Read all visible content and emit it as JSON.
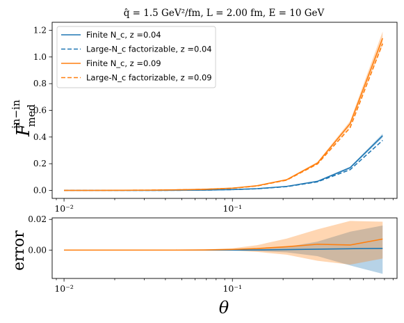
{
  "chart_data": [
    {
      "type": "line",
      "title": "q̂ = 1.5 GeV²/fm, L = 2.00 fm, E = 10 GeV",
      "xlabel": "",
      "ylabel": "F_med^(in−in)",
      "xscale": "log",
      "xlim": [
        0.0085,
        0.95
      ],
      "ylim": [
        -0.06,
        1.26
      ],
      "yticks": [
        "0.0",
        "0.2",
        "0.4",
        "0.6",
        "0.8",
        "1.0",
        "1.2"
      ],
      "xticks": [
        "10⁻²",
        "10⁻¹"
      ],
      "grid": false,
      "legend_position": "top-left",
      "x": [
        0.01,
        0.015,
        0.022,
        0.032,
        0.046,
        0.068,
        0.1,
        0.14,
        0.21,
        0.32,
        0.5,
        0.78
      ],
      "series": [
        {
          "name": "Finite N_c, z =0.04",
          "color": "#1f77b4",
          "dash": "solid",
          "values": [
            0.0,
            0.0,
            0.0,
            0.0,
            0.001,
            0.002,
            0.006,
            0.013,
            0.03,
            0.068,
            0.17,
            0.41
          ],
          "band_lower": [
            0.0,
            0.0,
            0.0,
            0.0,
            0.001,
            0.002,
            0.005,
            0.012,
            0.028,
            0.064,
            0.162,
            0.395
          ],
          "band_upper": [
            0.0,
            0.0,
            0.0,
            0.0,
            0.001,
            0.002,
            0.007,
            0.014,
            0.032,
            0.072,
            0.178,
            0.425
          ]
        },
        {
          "name": "Large-N_c factorizable, z =0.04",
          "color": "#1f77b4",
          "dash": "dashed",
          "values": [
            0.0,
            0.0,
            0.0,
            0.0,
            0.001,
            0.002,
            0.006,
            0.012,
            0.028,
            0.064,
            0.155,
            0.375
          ]
        },
        {
          "name": "Finite N_c, z =0.09",
          "color": "#ff7f0e",
          "dash": "solid",
          "values": [
            0.0,
            0.0,
            0.001,
            0.002,
            0.004,
            0.008,
            0.017,
            0.035,
            0.08,
            0.205,
            0.5,
            1.14
          ],
          "band_lower": [
            0.0,
            0.0,
            0.001,
            0.002,
            0.004,
            0.007,
            0.015,
            0.032,
            0.075,
            0.196,
            0.48,
            1.09
          ],
          "band_upper": [
            0.0,
            0.0,
            0.001,
            0.002,
            0.004,
            0.009,
            0.019,
            0.038,
            0.085,
            0.214,
            0.52,
            1.19
          ]
        },
        {
          "name": "Large-N_c factorizable, z =0.09",
          "color": "#ff7f0e",
          "dash": "dashed",
          "values": [
            0.0,
            0.0,
            0.001,
            0.002,
            0.004,
            0.008,
            0.016,
            0.033,
            0.077,
            0.198,
            0.47,
            1.1
          ]
        }
      ]
    },
    {
      "type": "line",
      "title": "",
      "xlabel": "θ",
      "ylabel": "error",
      "xscale": "log",
      "xlim": [
        0.0085,
        0.95
      ],
      "ylim": [
        -0.0185,
        0.021
      ],
      "yticks": [
        "0.00",
        "0.02"
      ],
      "xticks": [
        "10⁻²",
        "10⁻¹"
      ],
      "grid": false,
      "x": [
        0.01,
        0.015,
        0.022,
        0.032,
        0.046,
        0.068,
        0.1,
        0.14,
        0.21,
        0.32,
        0.5,
        0.78
      ],
      "series": [
        {
          "color": "#1f77b4",
          "dash": "solid",
          "values": [
            0.0,
            0.0,
            0.0,
            0.0,
            0.0,
            0.0,
            0.0,
            0.0001,
            0.0003,
            0.0006,
            0.0009,
            0.0011
          ],
          "band_lower": [
            0.0,
            0.0,
            0.0,
            0.0,
            0.0,
            0.0,
            -0.0002,
            -0.0006,
            -0.0015,
            -0.004,
            -0.01,
            -0.0155
          ],
          "band_upper": [
            0.0,
            0.0,
            0.0,
            0.0,
            0.0,
            0.0,
            0.0002,
            0.0008,
            0.002,
            0.0055,
            0.012,
            0.016
          ]
        },
        {
          "color": "#ff7f0e",
          "dash": "solid",
          "values": [
            0.0,
            0.0,
            0.0,
            0.0,
            0.0,
            0.0001,
            0.0004,
            0.001,
            0.0022,
            0.0038,
            0.0033,
            0.0072
          ],
          "band_lower": [
            0.0,
            0.0,
            0.0,
            0.0,
            0.0,
            -0.0001,
            -0.0003,
            -0.0012,
            -0.003,
            -0.007,
            -0.0095,
            -0.0055
          ],
          "band_upper": [
            0.0,
            0.0,
            0.0,
            0.0,
            0.0002,
            0.0004,
            0.0012,
            0.0032,
            0.0075,
            0.0135,
            0.019,
            0.0185
          ]
        }
      ]
    }
  ]
}
